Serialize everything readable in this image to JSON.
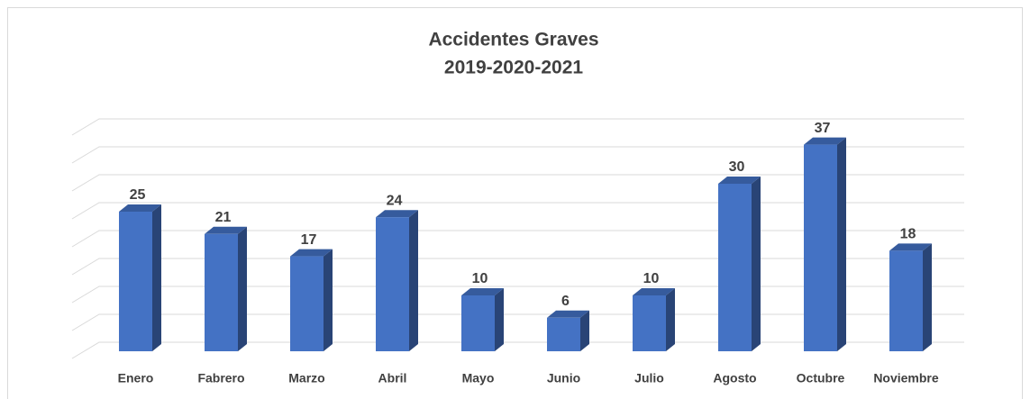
{
  "chart_data": {
    "type": "bar3d",
    "title": "Accidentes Graves",
    "subtitle": "2019-2020-2021",
    "categories": [
      "Enero",
      "Fabrero",
      "Marzo",
      "Abril",
      "Mayo",
      "Junio",
      "Julio",
      "Agosto",
      "Octubre",
      "Noviembre"
    ],
    "values": [
      25,
      21,
      17,
      24,
      10,
      6,
      10,
      30,
      37,
      18
    ],
    "color": "#4472c4",
    "ylim": [
      0,
      40
    ],
    "yticks": [
      0,
      5,
      10,
      15,
      20,
      25,
      30,
      35,
      40
    ],
    "grid": true
  }
}
